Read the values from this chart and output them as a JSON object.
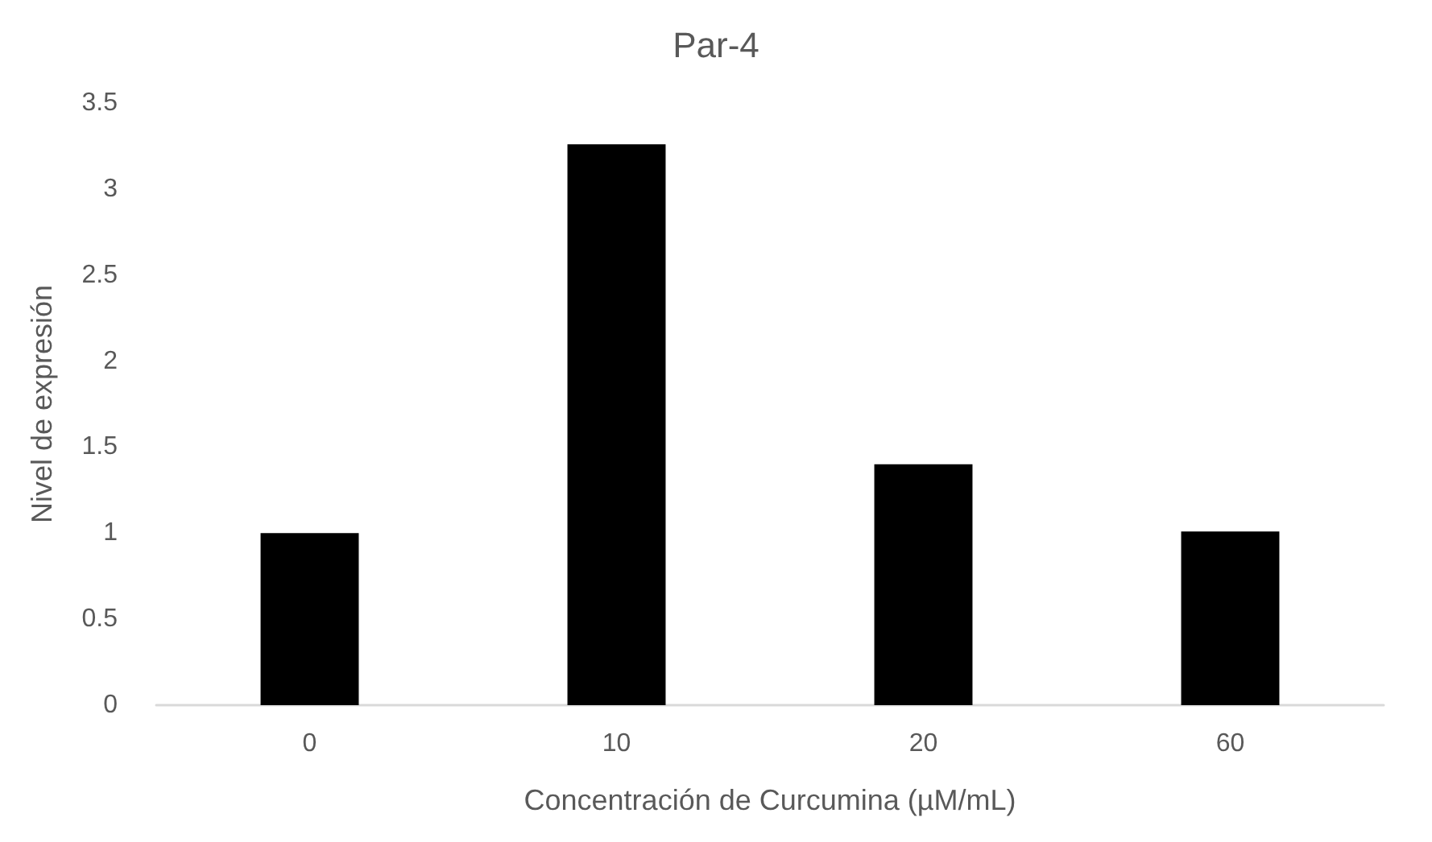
{
  "chart_data": {
    "type": "bar",
    "title": "Par-4",
    "xlabel": "Concentración de Curcumina (µM/mL)",
    "ylabel": "Nivel de expresión",
    "categories": [
      "0",
      "10",
      "20",
      "60"
    ],
    "values": [
      1.0,
      3.26,
      1.4,
      1.01
    ],
    "color": "#000000",
    "ylim": [
      0,
      3.5
    ],
    "yticks": [
      0,
      0.5,
      1,
      1.5,
      2,
      2.5,
      3,
      3.5
    ],
    "grid": false
  }
}
